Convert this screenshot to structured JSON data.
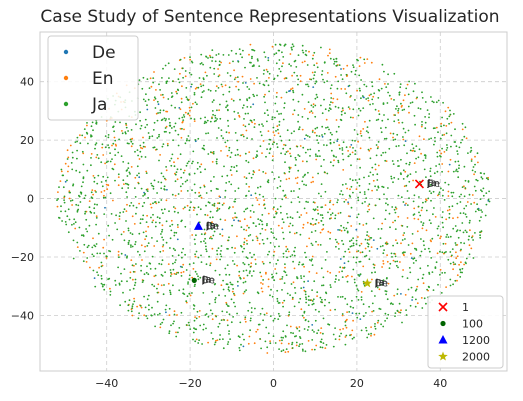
{
  "chart_data": {
    "type": "scatter",
    "title": "Case Study of Sentence Representations Visualization",
    "xlabel": "",
    "ylabel": "",
    "xlim": [
      -56,
      56
    ],
    "ylim": [
      -59,
      57
    ],
    "xticks": [
      -40,
      -20,
      0,
      20,
      40
    ],
    "yticks": [
      -40,
      -20,
      0,
      20,
      40
    ],
    "xtick_labels": [
      "−40",
      "−20",
      "0",
      "20",
      "40"
    ],
    "ytick_labels": [
      "−40",
      "−20",
      "0",
      "20",
      "40"
    ],
    "grid": true,
    "background_points": {
      "description_note_free": true,
      "cloud_center": [
        0,
        0
      ],
      "cloud_radius_x": 52,
      "cloud_radius_y": 53,
      "count_per_series": [
        60,
        700,
        2400
      ]
    },
    "series": [
      {
        "name": "De",
        "color": "#1f77b4"
      },
      {
        "name": "En",
        "color": "#ff7f0e"
      },
      {
        "name": "Ja",
        "color": "#2ca02c"
      }
    ],
    "highlight_series": [
      {
        "name": "1",
        "marker": "x",
        "color": "#ff0000",
        "x": 35,
        "y": 5,
        "label": "Ja"
      },
      {
        "name": "100",
        "marker": "circle",
        "color": "#006400",
        "x": -19,
        "y": -28,
        "label": "Ja"
      },
      {
        "name": "1200",
        "marker": "triangle",
        "color": "#0000ff",
        "x": -18,
        "y": -9.5,
        "label": "Ja"
      },
      {
        "name": "2000",
        "marker": "star",
        "color": "#bdb800",
        "x": 22.5,
        "y": -29,
        "label": "Ja"
      }
    ],
    "legend_main_placement": "top-left",
    "legend_highlight_placement": "bottom-right"
  }
}
